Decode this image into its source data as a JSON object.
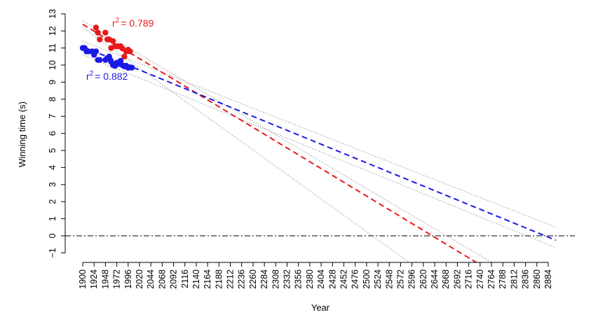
{
  "chart_data": {
    "type": "scatter",
    "title": "",
    "xlabel": "Year",
    "ylabel": "Winning time (s)",
    "xlim": [
      1900,
      2884
    ],
    "ylim": [
      -1,
      13
    ],
    "x_ticks": [
      1900,
      1924,
      1948,
      1972,
      1996,
      2020,
      2044,
      2068,
      2092,
      2116,
      2140,
      2164,
      2188,
      2212,
      2236,
      2260,
      2284,
      2308,
      2332,
      2356,
      2380,
      2404,
      2428,
      2452,
      2476,
      2500,
      2524,
      2548,
      2572,
      2596,
      2620,
      2644,
      2668,
      2692,
      2716,
      2740,
      2764,
      2788,
      2812,
      2836,
      2860,
      2884
    ],
    "y_ticks": [
      -1,
      0,
      1,
      2,
      3,
      4,
      5,
      6,
      7,
      8,
      9,
      10,
      11,
      12,
      13
    ],
    "reference_line": {
      "y": 0,
      "style": "dash-dot",
      "color": "#333333"
    },
    "series": [
      {
        "color": "#e8191b",
        "r2_label": "r² = 0.789",
        "r2_prefix": "r",
        "r2_sup": "2",
        "r2_value": "= 0.789",
        "points": [
          [
            1928,
            12.2
          ],
          [
            1932,
            11.9
          ],
          [
            1936,
            11.5
          ],
          [
            1948,
            11.9
          ],
          [
            1952,
            11.5
          ],
          [
            1956,
            11.5
          ],
          [
            1960,
            11.0
          ],
          [
            1964,
            11.4
          ],
          [
            1968,
            11.1
          ],
          [
            1972,
            11.1
          ],
          [
            1976,
            11.1
          ],
          [
            1980,
            11.1
          ],
          [
            1984,
            10.97
          ],
          [
            1988,
            10.5
          ],
          [
            1992,
            10.8
          ],
          [
            1996,
            10.9
          ],
          [
            2000,
            10.8
          ]
        ],
        "trend": {
          "slope": -0.01676,
          "intercept": 44.23
        },
        "ci_upper": [
          [
            1900,
            12.6
          ],
          [
            2764,
            -1.55
          ]
        ],
        "ci_lower": [
          [
            1900,
            12.2
          ],
          [
            2590,
            -1.55
          ]
        ]
      },
      {
        "color": "#1a1ae6",
        "r2_label": "r² = 0.882",
        "r2_prefix": "r",
        "r2_sup": "2",
        "r2_value": "= 0.882",
        "points": [
          [
            1900,
            11.0
          ],
          [
            1904,
            11.0
          ],
          [
            1908,
            10.8
          ],
          [
            1912,
            10.8
          ],
          [
            1920,
            10.8
          ],
          [
            1924,
            10.6
          ],
          [
            1928,
            10.8
          ],
          [
            1932,
            10.3
          ],
          [
            1936,
            10.3
          ],
          [
            1948,
            10.3
          ],
          [
            1952,
            10.4
          ],
          [
            1956,
            10.5
          ],
          [
            1960,
            10.2
          ],
          [
            1964,
            10.0
          ],
          [
            1968,
            9.95
          ],
          [
            1972,
            10.14
          ],
          [
            1976,
            10.06
          ],
          [
            1980,
            10.25
          ],
          [
            1984,
            9.99
          ],
          [
            1988,
            9.92
          ],
          [
            1992,
            9.96
          ],
          [
            1996,
            9.84
          ],
          [
            2000,
            9.87
          ],
          [
            2004,
            9.85
          ]
        ],
        "trend": {
          "slope": -0.01133,
          "intercept": 32.6
        },
        "ci_upper": [
          [
            1900,
            11.4
          ],
          [
            2900,
            0.5
          ]
        ],
        "ci_lower": [
          [
            1900,
            10.6
          ],
          [
            2900,
            -0.7
          ]
        ]
      }
    ]
  }
}
